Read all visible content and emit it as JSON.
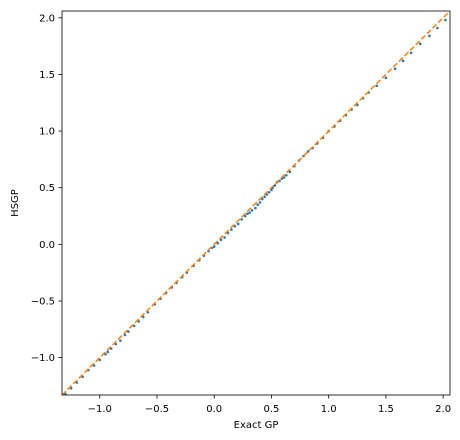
{
  "chart_data": {
    "type": "scatter",
    "title": "",
    "xlabel": "Exact GP",
    "ylabel": "HSGP",
    "xlim": [
      -1.33,
      2.06
    ],
    "ylim": [
      -1.33,
      2.06
    ],
    "grid": false,
    "xticks": [
      -1.0,
      -0.5,
      0.0,
      0.5,
      1.0,
      1.5,
      2.0
    ],
    "yticks": [
      -1.0,
      -0.5,
      0.0,
      0.5,
      1.0,
      1.5,
      2.0
    ],
    "xtick_labels": [
      "−1.0",
      "−0.5",
      "0.0",
      "0.5",
      "1.0",
      "1.5",
      "2.0"
    ],
    "ytick_labels": [
      "−1.0",
      "−0.5",
      "0.0",
      "0.5",
      "1.0",
      "1.5",
      "2.0"
    ],
    "series": [
      {
        "kind": "scatter",
        "color": "#1f77b4",
        "points": [
          [
            -1.3,
            -1.32
          ],
          [
            -1.25,
            -1.27
          ],
          [
            -1.2,
            -1.22
          ],
          [
            -1.15,
            -1.17
          ],
          [
            -1.1,
            -1.11
          ],
          [
            -1.05,
            -1.07
          ],
          [
            -1.0,
            -1.02
          ],
          [
            -0.95,
            -0.97
          ],
          [
            -0.93,
            -0.95
          ],
          [
            -0.9,
            -0.92
          ],
          [
            -0.86,
            -0.88
          ],
          [
            -0.82,
            -0.85
          ],
          [
            -0.78,
            -0.8
          ],
          [
            -0.75,
            -0.77
          ],
          [
            -0.7,
            -0.72
          ],
          [
            -0.66,
            -0.68
          ],
          [
            -0.62,
            -0.64
          ],
          [
            -0.58,
            -0.6
          ],
          [
            -0.52,
            -0.53
          ],
          [
            -0.47,
            -0.48
          ],
          [
            -0.42,
            -0.43
          ],
          [
            -0.37,
            -0.38
          ],
          [
            -0.33,
            -0.34
          ],
          [
            -0.28,
            -0.29
          ],
          [
            -0.24,
            -0.25
          ],
          [
            -0.18,
            -0.19
          ],
          [
            -0.13,
            -0.14
          ],
          [
            -0.09,
            -0.1
          ],
          [
            -0.05,
            -0.06
          ],
          [
            -0.02,
            -0.03
          ],
          [
            0.0,
            -0.02
          ],
          [
            0.03,
            0.01
          ],
          [
            0.06,
            0.04
          ],
          [
            0.09,
            0.06
          ],
          [
            0.12,
            0.1
          ],
          [
            0.15,
            0.13
          ],
          [
            0.18,
            0.16
          ],
          [
            0.21,
            0.18
          ],
          [
            0.24,
            0.22
          ],
          [
            0.27,
            0.25
          ],
          [
            0.29,
            0.27
          ],
          [
            0.31,
            0.28
          ],
          [
            0.33,
            0.3
          ],
          [
            0.36,
            0.32
          ],
          [
            0.38,
            0.35
          ],
          [
            0.4,
            0.37
          ],
          [
            0.42,
            0.4
          ],
          [
            0.44,
            0.42
          ],
          [
            0.46,
            0.44
          ],
          [
            0.48,
            0.46
          ],
          [
            0.5,
            0.48
          ],
          [
            0.51,
            0.5
          ],
          [
            0.53,
            0.52
          ],
          [
            0.55,
            0.55
          ],
          [
            0.57,
            0.56
          ],
          [
            0.59,
            0.58
          ],
          [
            0.61,
            0.59
          ],
          [
            0.63,
            0.61
          ],
          [
            0.66,
            0.64
          ],
          [
            0.7,
            0.69
          ],
          [
            0.74,
            0.74
          ],
          [
            0.78,
            0.78
          ],
          [
            0.82,
            0.82
          ],
          [
            0.86,
            0.85
          ],
          [
            0.9,
            0.89
          ],
          [
            0.95,
            0.94
          ],
          [
            1.0,
            1.0
          ],
          [
            1.05,
            1.04
          ],
          [
            1.1,
            1.09
          ],
          [
            1.15,
            1.14
          ],
          [
            1.2,
            1.19
          ],
          [
            1.25,
            1.23
          ],
          [
            1.3,
            1.29
          ],
          [
            1.35,
            1.34
          ],
          [
            1.42,
            1.4
          ],
          [
            1.5,
            1.47
          ],
          [
            1.58,
            1.55
          ],
          [
            1.65,
            1.62
          ],
          [
            1.72,
            1.69
          ],
          [
            1.8,
            1.77
          ],
          [
            1.88,
            1.84
          ],
          [
            1.95,
            1.91
          ],
          [
            2.02,
            1.98
          ]
        ]
      },
      {
        "kind": "line",
        "color": "#ff7f0e",
        "dash": true,
        "points": [
          [
            -1.33,
            -1.33
          ],
          [
            2.06,
            2.06
          ]
        ]
      }
    ]
  }
}
